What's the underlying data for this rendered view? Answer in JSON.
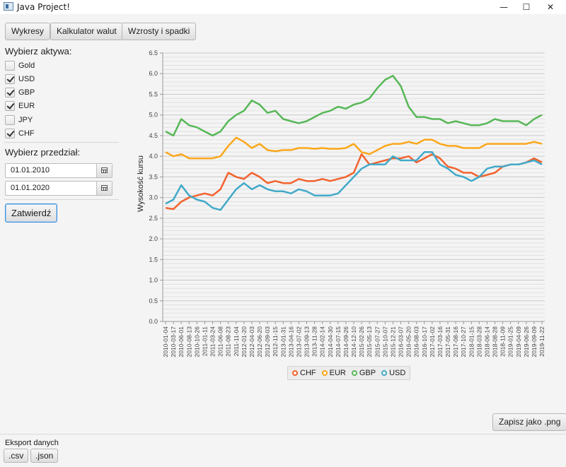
{
  "window": {
    "title": "Java Project!",
    "min_glyph": "—",
    "max_glyph": "☐",
    "close_glyph": "✕"
  },
  "tabs": [
    "Wykresy",
    "Kalkulator walut",
    "Wzrosty i spadki"
  ],
  "assets": {
    "label": "Wybierz aktywa:",
    "items": [
      {
        "label": "Gold",
        "checked": false
      },
      {
        "label": "USD",
        "checked": true
      },
      {
        "label": "GBP",
        "checked": true
      },
      {
        "label": "EUR",
        "checked": true
      },
      {
        "label": "JPY",
        "checked": false
      },
      {
        "label": "CHF",
        "checked": true
      }
    ]
  },
  "range": {
    "label": "Wybierz przedział:",
    "from": "01.01.2010",
    "to": "01.01.2020"
  },
  "submit_label": "Zatwierdź",
  "save_label": "Zapisz jako .png",
  "export": {
    "label": "Eksport danych",
    "csv": ".csv",
    "json": ".json"
  },
  "chart_data": {
    "type": "line",
    "ylabel": "Wysokość kursu",
    "ylim": [
      0.0,
      6.5
    ],
    "yticks": [
      "0.0",
      "0.5",
      "1.0",
      "1.5",
      "2.0",
      "2.5",
      "3.0",
      "3.5",
      "4.0",
      "4.5",
      "5.0",
      "5.5",
      "6.0",
      "6.5"
    ],
    "xticks": [
      "2010-01-04",
      "2010-03-17",
      "2010-06-01",
      "2010-08-13",
      "2010-10-26",
      "2011-01-11",
      "2011-03-24",
      "2011-06-08",
      "2011-08-23",
      "2011-11-04",
      "2012-01-20",
      "2012-04-03",
      "2012-06-20",
      "2012-09-03",
      "2012-11-15",
      "2013-01-31",
      "2013-04-16",
      "2013-07-02",
      "2013-09-13",
      "2013-11-28",
      "2014-02-14",
      "2014-04-30",
      "2014-07-15",
      "2014-09-26",
      "2014-12-10",
      "2015-02-26",
      "2015-05-13",
      "2015-07-27",
      "2015-10-07",
      "2015-12-21",
      "2016-03-07",
      "2016-05-20",
      "2016-08-03",
      "2016-10-17",
      "2017-01-02",
      "2017-03-16",
      "2017-05-31",
      "2017-08-16",
      "2017-10-27",
      "2018-01-15",
      "2018-03-28",
      "2018-06-14",
      "2018-08-28",
      "2018-11-09",
      "2019-01-25",
      "2019-04-09",
      "2019-06-26",
      "2019-09-09",
      "2019-11-22"
    ],
    "legend_position": "bottom",
    "series": [
      {
        "name": "CHF",
        "color": "#f3622d",
        "values": [
          2.75,
          2.72,
          2.9,
          3.0,
          3.05,
          3.1,
          3.05,
          3.2,
          3.6,
          3.5,
          3.45,
          3.6,
          3.5,
          3.35,
          3.4,
          3.35,
          3.35,
          3.45,
          3.4,
          3.4,
          3.45,
          3.4,
          3.45,
          3.5,
          3.6,
          4.05,
          3.8,
          3.85,
          3.9,
          3.95,
          3.95,
          4.0,
          3.85,
          3.95,
          4.05,
          3.95,
          3.75,
          3.7,
          3.6,
          3.6,
          3.5,
          3.55,
          3.6,
          3.75,
          3.8,
          3.8,
          3.85,
          3.95,
          3.85
        ]
      },
      {
        "name": "EUR",
        "color": "#fba71b",
        "values": [
          4.1,
          4.0,
          4.05,
          3.95,
          3.95,
          3.95,
          3.95,
          4.0,
          4.25,
          4.45,
          4.35,
          4.2,
          4.3,
          4.15,
          4.12,
          4.15,
          4.15,
          4.2,
          4.2,
          4.18,
          4.2,
          4.18,
          4.18,
          4.2,
          4.3,
          4.1,
          4.05,
          4.15,
          4.25,
          4.3,
          4.3,
          4.35,
          4.3,
          4.4,
          4.4,
          4.3,
          4.25,
          4.25,
          4.2,
          4.2,
          4.2,
          4.3,
          4.3,
          4.3,
          4.3,
          4.3,
          4.3,
          4.35,
          4.3
        ]
      },
      {
        "name": "GBP",
        "color": "#57b757",
        "values": [
          4.6,
          4.5,
          4.9,
          4.75,
          4.7,
          4.6,
          4.5,
          4.6,
          4.85,
          5.0,
          5.1,
          5.35,
          5.25,
          5.05,
          5.1,
          4.9,
          4.85,
          4.8,
          4.85,
          4.95,
          5.05,
          5.1,
          5.2,
          5.15,
          5.25,
          5.3,
          5.4,
          5.65,
          5.85,
          5.95,
          5.7,
          5.2,
          4.95,
          4.95,
          4.9,
          4.9,
          4.8,
          4.85,
          4.8,
          4.75,
          4.75,
          4.8,
          4.9,
          4.85,
          4.85,
          4.85,
          4.75,
          4.9,
          5.0
        ]
      },
      {
        "name": "USD",
        "color": "#41a9c9",
        "values": [
          2.85,
          2.95,
          3.3,
          3.05,
          2.95,
          2.9,
          2.75,
          2.7,
          2.95,
          3.2,
          3.35,
          3.2,
          3.3,
          3.2,
          3.15,
          3.15,
          3.1,
          3.2,
          3.15,
          3.05,
          3.05,
          3.05,
          3.1,
          3.3,
          3.5,
          3.7,
          3.8,
          3.8,
          3.8,
          4.0,
          3.9,
          3.9,
          3.9,
          4.1,
          4.1,
          3.8,
          3.7,
          3.55,
          3.5,
          3.4,
          3.5,
          3.7,
          3.75,
          3.75,
          3.8,
          3.8,
          3.85,
          3.9,
          3.8
        ]
      }
    ]
  }
}
